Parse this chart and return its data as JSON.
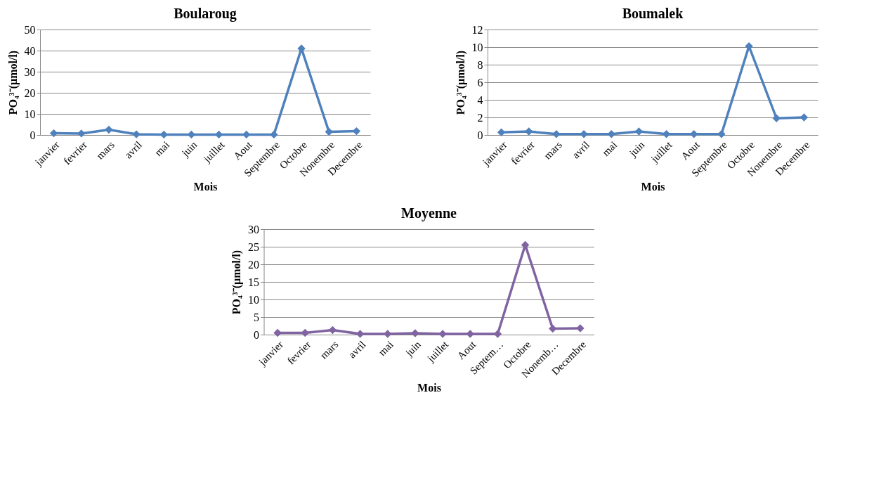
{
  "chart_data": [
    {
      "type": "line",
      "title": "Boularoug",
      "xlabel": "Mois",
      "ylabel": "PO₄³⁻(µmol/l)",
      "categories": [
        "janvier",
        "fevrier",
        "mars",
        "avril",
        "mai",
        "juin",
        "juillet",
        "Aout",
        "Septembre",
        "Octobre",
        "Nonembre",
        "Decembre"
      ],
      "series": [
        {
          "color": "#4f81bd",
          "values": [
            0.8,
            0.7,
            2.5,
            0.3,
            0.2,
            0.2,
            0.2,
            0.2,
            0.2,
            41,
            1.5,
            1.8
          ]
        }
      ],
      "ylim": [
        0,
        50
      ],
      "yticks": [
        0,
        10,
        20,
        30,
        40,
        50
      ],
      "grid": "y",
      "marker": "diamond",
      "line_style": "solid",
      "legend": false
    },
    {
      "type": "line",
      "title": "Boumalek",
      "xlabel": "Mois",
      "ylabel": "PO₄³⁻(µmol/l)",
      "categories": [
        "janvier",
        "fevrier",
        "mars",
        "avril",
        "mai",
        "juin",
        "juillet",
        "Aout",
        "Septembre",
        "Octobre",
        "Nonembre",
        "Decembre"
      ],
      "series": [
        {
          "color": "#4f81bd",
          "values": [
            0.3,
            0.4,
            0.1,
            0.1,
            0.1,
            0.4,
            0.1,
            0.1,
            0.1,
            10.1,
            1.9,
            2.0
          ]
        }
      ],
      "ylim": [
        0,
        12
      ],
      "yticks": [
        0,
        2,
        4,
        6,
        8,
        10,
        12
      ],
      "grid": "y",
      "marker": "diamond",
      "line_style": "solid",
      "legend": false
    },
    {
      "type": "line",
      "title": "Moyenne",
      "xlabel": "Mois",
      "ylabel": "PO₄³⁻(µmol/l)",
      "categories": [
        "janvier",
        "fevrier",
        "mars",
        "avril",
        "mai",
        "juin",
        "juillet",
        "Aout",
        "Septem…",
        "Octobre",
        "Nonemb…",
        "Decembre"
      ],
      "series": [
        {
          "color": "#8064a2",
          "values": [
            0.5,
            0.5,
            1.3,
            0.2,
            0.2,
            0.4,
            0.2,
            0.2,
            0.2,
            25.5,
            1.7,
            1.8
          ]
        }
      ],
      "ylim": [
        0,
        30
      ],
      "yticks": [
        0,
        5,
        10,
        15,
        20,
        25,
        30
      ],
      "grid": "y",
      "marker": "diamond",
      "line_style": "solid",
      "legend": false
    }
  ]
}
